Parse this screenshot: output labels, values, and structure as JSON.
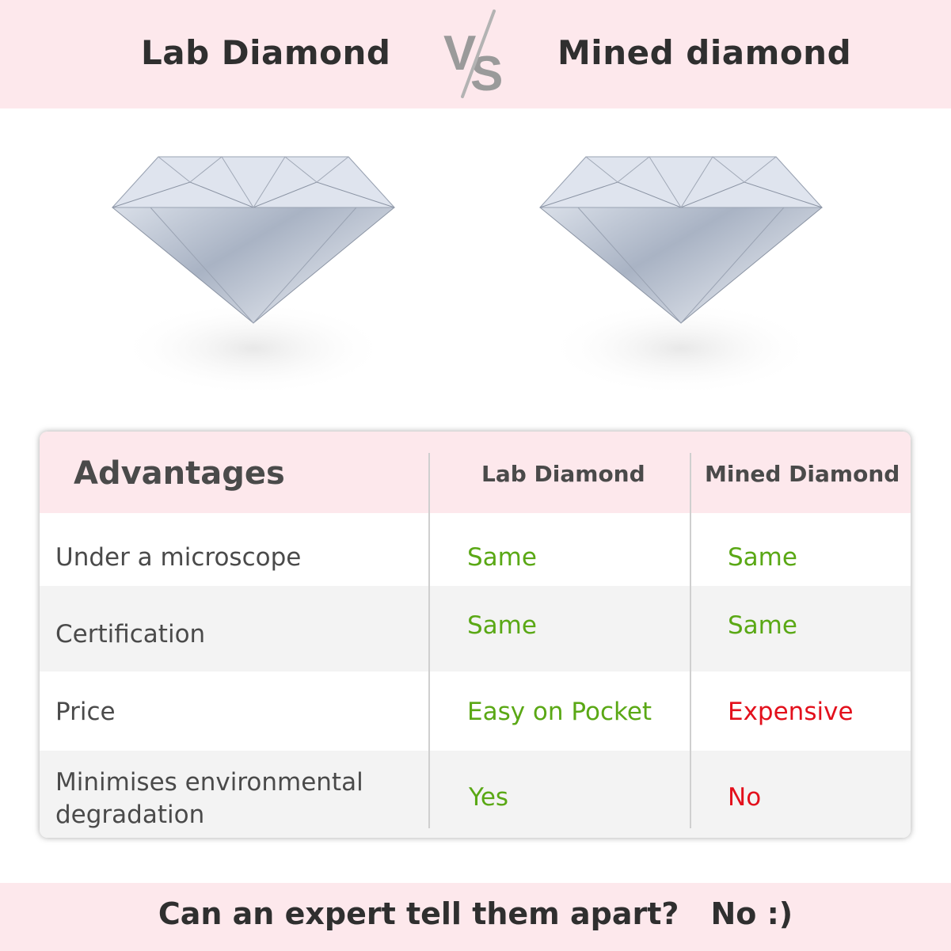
{
  "header": {
    "left_title": "Lab Diamond",
    "vs_label": "VS",
    "right_title": "Mined diamond"
  },
  "images": {
    "left": "diamond-image",
    "right": "diamond-image"
  },
  "table": {
    "headers": [
      "Advantages",
      "Lab Diamond",
      "Mined Diamond"
    ],
    "rows": [
      {
        "label": "Under a microscope",
        "lab": "Same",
        "mined": "Same"
      },
      {
        "label": "Certification",
        "lab": "Same",
        "mined": "Same"
      },
      {
        "label": "Price",
        "lab": "Easy on Pocket",
        "mined": "Expensive"
      },
      {
        "label": "Minimises environmental degradation",
        "lab": "Yes",
        "mined": "No"
      }
    ]
  },
  "footer": {
    "question": "Can an expert tell them apart?",
    "answer": "No :)"
  },
  "colors": {
    "band": "#fde8ec",
    "positive": "#5aa815",
    "negative": "#e3101c",
    "row_alt": "#f3f3f3"
  }
}
